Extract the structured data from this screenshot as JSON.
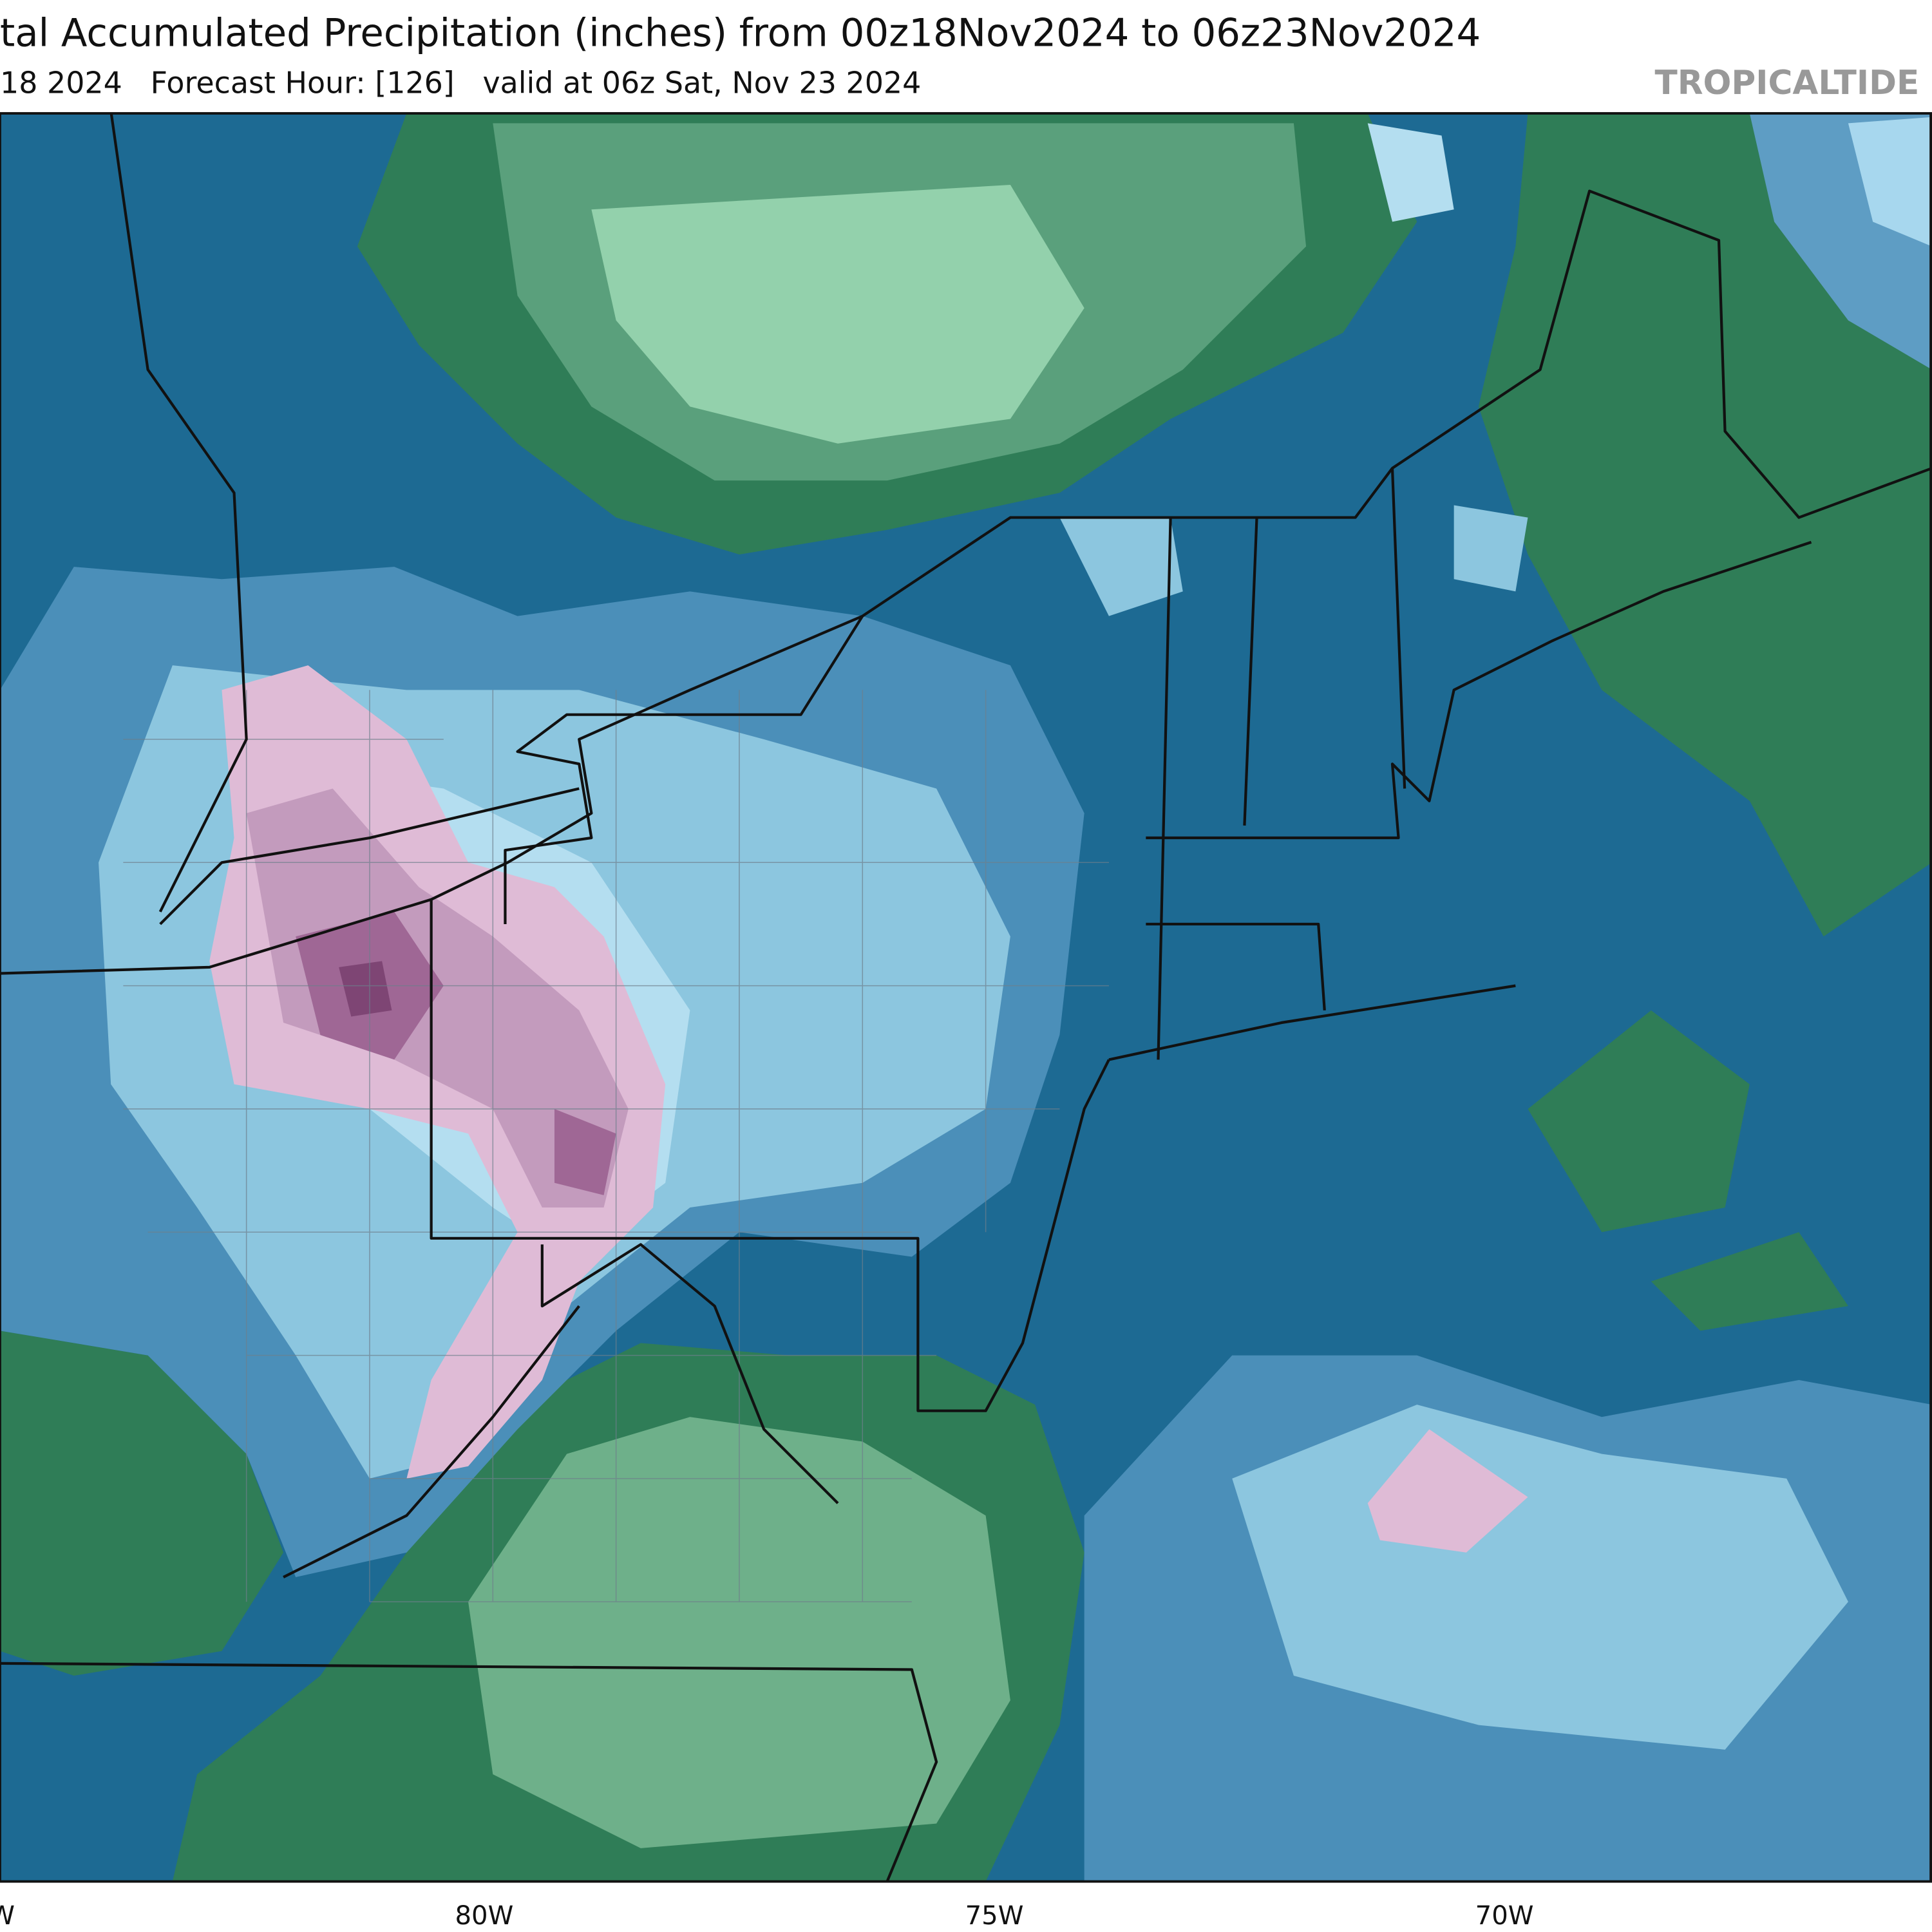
{
  "header": {
    "title": "tal Accumulated Precipitation (inches) from 00z18Nov2024 to 06z23Nov2024",
    "subtitle": "18 2024   Forecast Hour: [126]   valid at 06z Sat, Nov 23 2024",
    "brand": "TROPICALTIDE"
  },
  "map": {
    "longitude_labels": [
      "W",
      "80W",
      "75W",
      "70W"
    ]
  }
}
